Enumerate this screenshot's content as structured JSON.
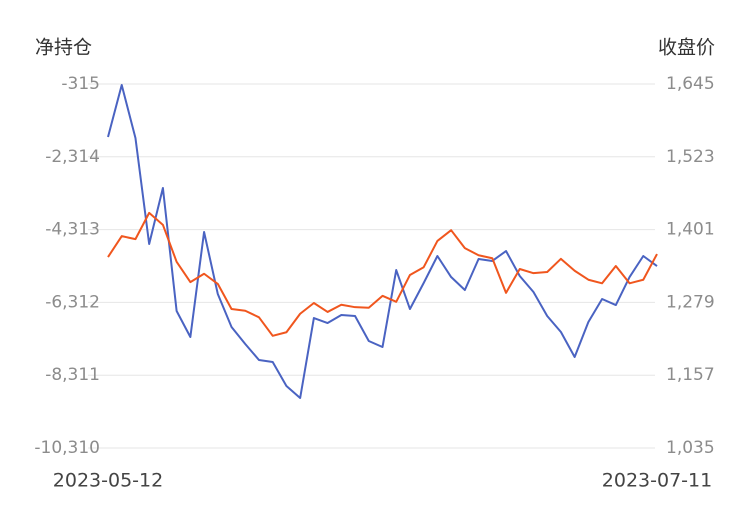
{
  "chart_data": {
    "type": "line",
    "y_title": "净持仓",
    "y2_title": "收盘价",
    "categories": [
      "2023-05-12",
      null,
      null,
      null,
      null,
      null,
      null,
      null,
      null,
      null,
      null,
      null,
      null,
      null,
      null,
      null,
      null,
      null,
      null,
      null,
      null,
      null,
      null,
      null,
      null,
      null,
      null,
      null,
      null,
      null,
      null,
      null,
      null,
      null,
      null,
      null,
      null,
      null,
      null,
      null,
      "2023-07-11"
    ],
    "series": [
      {
        "color": "#4a63c2",
        "values": [
          -1770,
          -342,
          -1798,
          -4709,
          -3171,
          -6548,
          -7262,
          -4379,
          -6082,
          -6988,
          -7455,
          -7894,
          -7949,
          -8608,
          -8937,
          -6741,
          -6878,
          -6658,
          -6686,
          -7372,
          -7537,
          -5423,
          -6494,
          -5779,
          -5038,
          -5615,
          -5972,
          -5121,
          -5175,
          -4901,
          -5587,
          -6027,
          -6686,
          -7125,
          -7812,
          -6850,
          -6219,
          -6384,
          -5615,
          -5038,
          -5313
        ]
      },
      {
        "color": "#f0561e",
        "axis": "y2",
        "values": [
          1355,
          1390,
          1385,
          1429,
          1409,
          1347,
          1313,
          1327,
          1310,
          1268,
          1265,
          1254,
          1223,
          1229,
          1260,
          1278,
          1263,
          1275,
          1271,
          1270,
          1290,
          1280,
          1325,
          1338,
          1382,
          1400,
          1370,
          1358,
          1353,
          1295,
          1335,
          1328,
          1330,
          1352,
          1332,
          1317,
          1311,
          1340,
          1311,
          1317,
          1360
        ]
      }
    ],
    "ylim": [
      -10310,
      -315
    ],
    "yticks": [
      -315,
      {
        "value": -2314,
        "label": "-2,314"
      },
      {
        "value": -4313,
        "label": "-4,313"
      },
      {
        "value": -6312,
        "label": "-6,312"
      },
      {
        "value": -8311,
        "label": "-8,311"
      },
      {
        "value": -10310,
        "label": "-10,310"
      }
    ],
    "y2lim": [
      1035,
      1645
    ],
    "y2ticks": [
      {
        "value": 1645,
        "label": "1,645"
      },
      {
        "value": 1523,
        "label": "1,523"
      },
      {
        "value": 1401,
        "label": "1,401"
      },
      {
        "value": 1279,
        "label": "1,279"
      },
      {
        "value": 1157,
        "label": "1,157"
      },
      {
        "value": 1035,
        "label": "1,035"
      }
    ],
    "grid": true
  }
}
